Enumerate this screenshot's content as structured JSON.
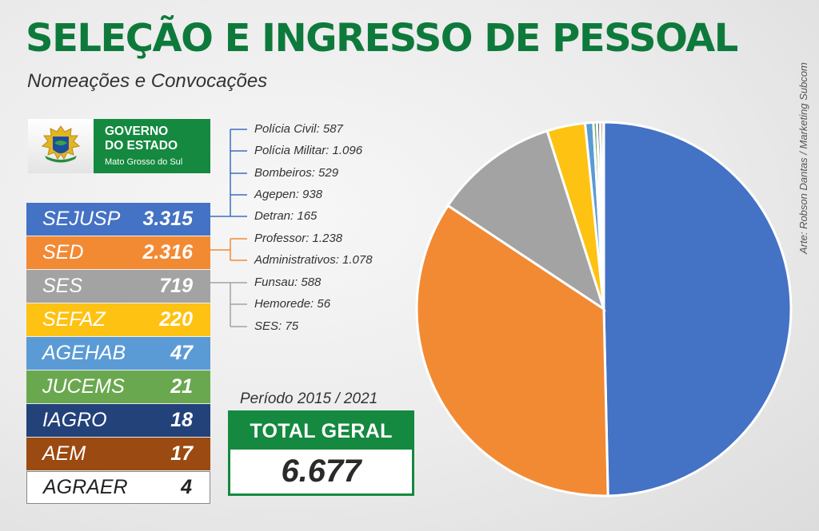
{
  "header": {
    "title": "SELEÇÃO E INGRESSO DE PESSOAL",
    "subtitle": "Nomeações e Convocações",
    "credit": "Arte: Robson Dantas / Marketing Subcom"
  },
  "logo": {
    "line1": "GOVERNO",
    "line2": "DO ESTADO",
    "line3": "Mato Grosso do Sul"
  },
  "summary": {
    "period": "Período 2015 / 2021",
    "total_label": "TOTAL GERAL",
    "total_value": "6.677"
  },
  "breakdown": [
    {
      "text": "Polícia Civil: 587",
      "group": "SEJUSP"
    },
    {
      "text": "Polícia Militar: 1.096",
      "group": "SEJUSP"
    },
    {
      "text": "Bombeiros: 529",
      "group": "SEJUSP"
    },
    {
      "text": "Agepen: 938",
      "group": "SEJUSP"
    },
    {
      "text": "Detran: 165",
      "group": "SEJUSP"
    },
    {
      "text": "Professor: 1.238",
      "group": "SED"
    },
    {
      "text": "Administrativos: 1.078",
      "group": "SED"
    },
    {
      "text": "Funsau: 588",
      "group": "SES"
    },
    {
      "text": "Hemorede: 56",
      "group": "SES"
    },
    {
      "text": "SES: 75",
      "group": "SES"
    }
  ],
  "chart_data": {
    "type": "pie",
    "title": "",
    "categories": [
      "SEJUSP",
      "SED",
      "SES",
      "SEFAZ",
      "AGEHAB",
      "JUCEMS",
      "IAGRO",
      "AEM",
      "AGRAER"
    ],
    "labels": [
      "3.315",
      "2.316",
      "719",
      "220",
      "47",
      "21",
      "18",
      "17",
      "4"
    ],
    "values": [
      3315,
      2316,
      719,
      220,
      47,
      21,
      18,
      17,
      4
    ],
    "colors": [
      "#4472c4",
      "#f28a34",
      "#a3a3a3",
      "#fdc212",
      "#5b9bd5",
      "#6aa84f",
      "#24427a",
      "#9b4a11",
      "#ffffff"
    ],
    "text_colors": [
      "#ffffff",
      "#ffffff",
      "#ffffff",
      "#ffffff",
      "#ffffff",
      "#ffffff",
      "#ffffff",
      "#ffffff",
      "#222222"
    ],
    "total": 6677,
    "legend": "left",
    "start": "top",
    "direction": "clockwise"
  }
}
